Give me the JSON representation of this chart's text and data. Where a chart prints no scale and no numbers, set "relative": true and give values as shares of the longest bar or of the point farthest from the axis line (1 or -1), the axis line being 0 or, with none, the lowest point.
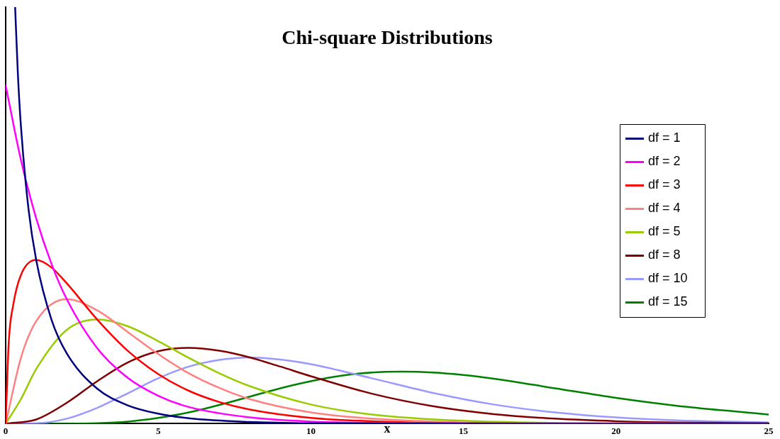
{
  "chart_data": {
    "type": "line",
    "title": "Chi-square Distributions",
    "xlabel": "x",
    "relative": true,
    "xlim": [
      0,
      25
    ],
    "xticks": [
      0,
      5,
      10,
      15,
      20,
      25
    ],
    "grid": false,
    "legend": "right",
    "marker": "none",
    "line_style": "solid",
    "series": [
      {
        "name": "df = 1",
        "color": "#000080",
        "x": [
          0.31,
          0.4,
          0.5,
          0.75,
          1,
          1.5,
          2,
          3,
          4,
          5,
          6,
          8,
          10,
          15,
          25
        ],
        "values": [
          1.0,
          0.839,
          0.714,
          0.514,
          0.393,
          0.25,
          0.169,
          0.084,
          0.044,
          0.024,
          0.013,
          0.004,
          0.001,
          0,
          0
        ]
      },
      {
        "name": "df = 2",
        "color": "#ff00ff",
        "x": [
          0,
          0.5,
          1,
          1.5,
          2,
          3,
          4,
          5,
          6,
          8,
          10,
          12,
          15
        ],
        "values": [
          0.812,
          0.633,
          0.493,
          0.384,
          0.299,
          0.181,
          0.11,
          0.067,
          0.04,
          0.015,
          0.005,
          0.002,
          0
        ]
      },
      {
        "name": "df = 3",
        "color": "#ff0000",
        "x": [
          0,
          0.1,
          0.25,
          0.5,
          1,
          1.5,
          2,
          3,
          4,
          5,
          6,
          7,
          8,
          10,
          12,
          15,
          20,
          25
        ],
        "values": [
          0,
          0.195,
          0.286,
          0.357,
          0.393,
          0.375,
          0.337,
          0.25,
          0.175,
          0.119,
          0.079,
          0.052,
          0.034,
          0.014,
          0.006,
          0.001,
          0,
          0
        ]
      },
      {
        "name": "df = 4",
        "color": "#ff8080",
        "x": [
          0,
          0.5,
          1,
          2,
          3,
          4,
          5,
          6,
          7,
          8,
          10,
          12,
          15,
          20,
          25
        ],
        "values": [
          0,
          0.158,
          0.246,
          0.299,
          0.272,
          0.22,
          0.167,
          0.121,
          0.086,
          0.059,
          0.027,
          0.012,
          0.003,
          0,
          0
        ]
      },
      {
        "name": "df = 5",
        "color": "#99cc00",
        "x": [
          0,
          0.5,
          1,
          2,
          3,
          4,
          5,
          6,
          7,
          8,
          10,
          12,
          15,
          20,
          25
        ],
        "values": [
          0,
          0.059,
          0.131,
          0.225,
          0.25,
          0.234,
          0.198,
          0.158,
          0.121,
          0.09,
          0.046,
          0.022,
          0.007,
          0.001,
          0
        ]
      },
      {
        "name": "df = 8",
        "color": "#800000",
        "x": [
          0,
          1,
          2,
          3,
          4,
          5,
          6,
          7,
          8,
          9,
          10,
          12,
          14,
          16,
          18,
          20,
          22,
          25
        ],
        "values": [
          0,
          0.01,
          0.05,
          0.102,
          0.147,
          0.174,
          0.182,
          0.175,
          0.159,
          0.137,
          0.114,
          0.072,
          0.042,
          0.023,
          0.012,
          0.006,
          0.003,
          0.001
        ]
      },
      {
        "name": "df = 10",
        "color": "#9999ff",
        "x": [
          0,
          1,
          2,
          3,
          4,
          5,
          6,
          7,
          8,
          9,
          10,
          12,
          14,
          16,
          18,
          20,
          22,
          25
        ],
        "values": [
          0,
          0.001,
          0.012,
          0.038,
          0.073,
          0.109,
          0.137,
          0.153,
          0.159,
          0.154,
          0.143,
          0.109,
          0.074,
          0.046,
          0.027,
          0.015,
          0.008,
          0.003
        ]
      },
      {
        "name": "df = 15",
        "color": "#008000",
        "x": [
          0,
          2,
          3,
          4,
          5,
          6,
          7,
          8,
          9,
          10,
          11,
          12,
          13,
          14,
          15,
          16,
          18,
          20,
          22,
          25
        ],
        "values": [
          0,
          0,
          0.001,
          0.005,
          0.014,
          0.027,
          0.045,
          0.065,
          0.085,
          0.102,
          0.115,
          0.123,
          0.125,
          0.123,
          0.117,
          0.108,
          0.085,
          0.062,
          0.043,
          0.022
        ]
      }
    ]
  }
}
